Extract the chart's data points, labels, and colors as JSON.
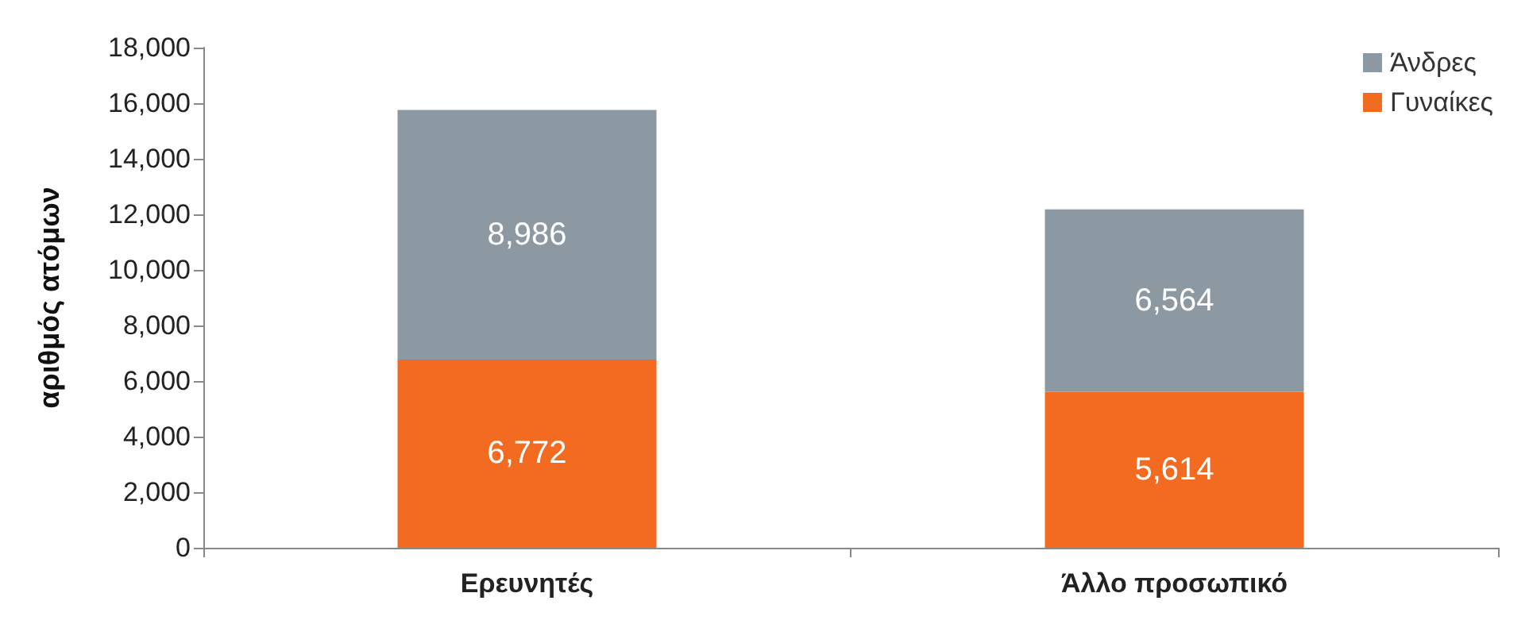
{
  "chart_data": {
    "type": "bar",
    "stacked": true,
    "ylabel": "αριθμός ατόμων",
    "categories": [
      "Ερευνητές",
      "Άλλο προσωπικό"
    ],
    "series": [
      {
        "name": "Γυναίκες",
        "color": "#f26b21",
        "values": [
          6772,
          5614
        ],
        "value_labels": [
          "6,772",
          "5,614"
        ]
      },
      {
        "name": "Άνδρες",
        "color": "#8c99a3",
        "values": [
          8986,
          6564
        ],
        "value_labels": [
          "8,986",
          "6,564"
        ]
      }
    ],
    "ylim": [
      0,
      18000
    ],
    "yticks": [
      {
        "value": 0,
        "label": "0"
      },
      {
        "value": 2000,
        "label": "2,000"
      },
      {
        "value": 4000,
        "label": "4,000"
      },
      {
        "value": 6000,
        "label": "6,000"
      },
      {
        "value": 8000,
        "label": "8,000"
      },
      {
        "value": 10000,
        "label": "10,000"
      },
      {
        "value": 12000,
        "label": "12,000"
      },
      {
        "value": 14000,
        "label": "14,000"
      },
      {
        "value": 16000,
        "label": "16,000"
      },
      {
        "value": 18000,
        "label": "18,000"
      }
    ],
    "grid": false,
    "legend": "top right"
  }
}
